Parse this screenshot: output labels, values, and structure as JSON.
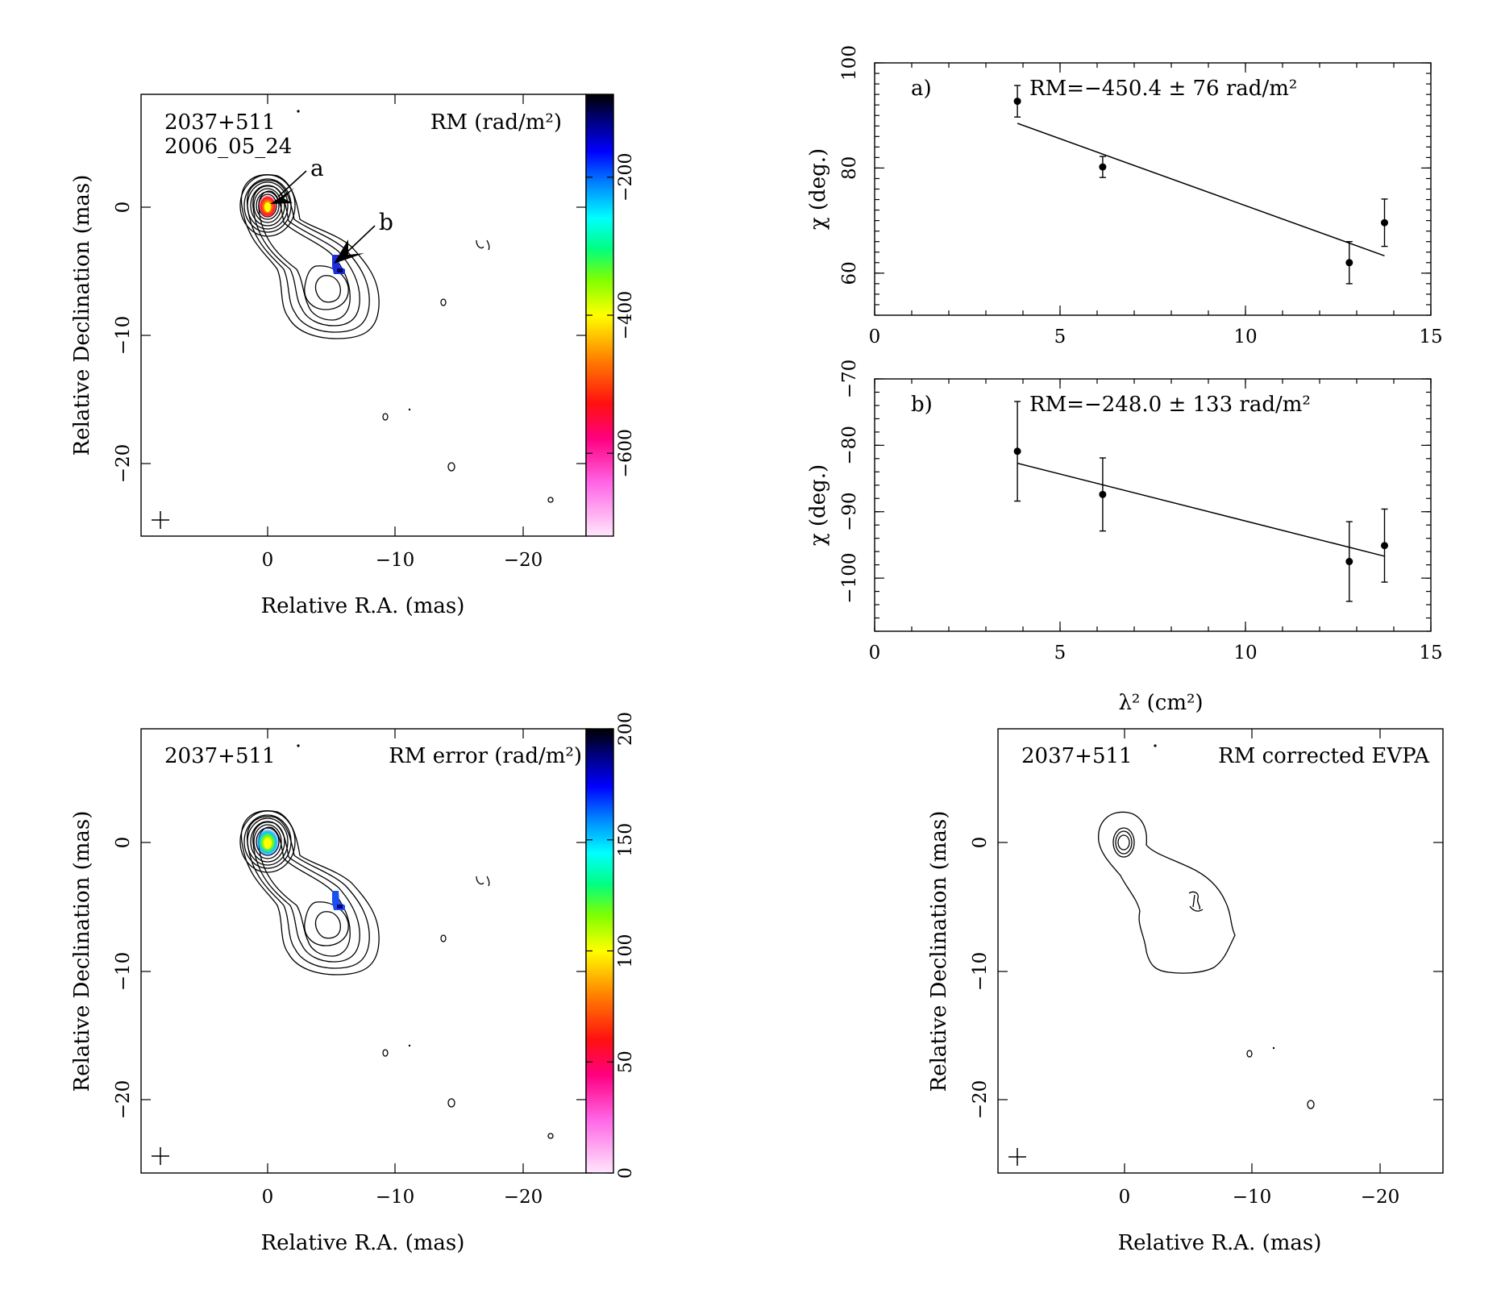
{
  "panels": {
    "rm_map": {
      "source": "2037+511",
      "date": "2006_05_24",
      "quantity": "RM (rad/m²)",
      "marker_a": "a",
      "marker_b": "b",
      "xlabel": "Relative R.A. (mas)",
      "ylabel": "Relative Declination (mas)",
      "xticks": [
        "0",
        "−10",
        "−20"
      ],
      "yticks": [
        "0",
        "−10",
        "−20"
      ],
      "colorbar_ticks": [
        "−200",
        "−400",
        "−600"
      ],
      "colorbar_range": [
        -720,
        -80
      ]
    },
    "rm_error_map": {
      "source": "2037+511",
      "quantity": "RM error (rad/m²)",
      "xlabel": "Relative R.A. (mas)",
      "ylabel": "Relative Declination (mas)",
      "xticks": [
        "0",
        "−10",
        "−20"
      ],
      "yticks": [
        "0",
        "−10",
        "−20"
      ],
      "colorbar_ticks": [
        "0",
        "50",
        "100",
        "150",
        "200"
      ],
      "colorbar_range": [
        0,
        200
      ]
    },
    "evpa_map": {
      "source": "2037+511",
      "quantity": "RM corrected EVPA",
      "xlabel": "Relative R.A. (mas)",
      "ylabel": "Relative Declination (mas)",
      "xticks": [
        "0",
        "−10",
        "−20"
      ],
      "yticks": [
        "0",
        "−10",
        "−20"
      ]
    },
    "fit_shared_xlabel": "λ² (cm²)"
  },
  "chart_data": [
    {
      "type": "scatter",
      "panel_label": "a)",
      "annotation": "RM=−450.4 ± 76 rad/m²",
      "ylabel": "χ (deg.)",
      "xlim": [
        0,
        15
      ],
      "ylim": [
        52,
        100
      ],
      "xticks": [
        "0",
        "5",
        "10",
        "15"
      ],
      "yticks": [
        "60",
        "80",
        "100"
      ],
      "x": [
        3.85,
        6.15,
        12.8,
        13.75
      ],
      "y": [
        92.7,
        80.2,
        62.0,
        69.6
      ],
      "yerr": [
        3.0,
        2.0,
        4.0,
        4.5
      ],
      "fit_line": {
        "x": [
          3.85,
          13.75
        ],
        "y": [
          88.5,
          63.3
        ]
      }
    },
    {
      "type": "scatter",
      "panel_label": "b)",
      "annotation": "RM=−248.0 ± 133 rad/m²",
      "ylabel": "χ (deg.)",
      "xlim": [
        0,
        15
      ],
      "ylim": [
        -108,
        -70
      ],
      "xticks": [
        "0",
        "5",
        "10",
        "15"
      ],
      "yticks": [
        "−70",
        "−80",
        "−90",
        "−100"
      ],
      "x": [
        3.85,
        6.15,
        12.8,
        13.75
      ],
      "y": [
        -80.9,
        -87.4,
        -97.5,
        -95.1
      ],
      "yerr": [
        7.5,
        5.5,
        6.0,
        5.5
      ],
      "fit_line": {
        "x": [
          3.85,
          13.75
        ],
        "y": [
          -82.7,
          -96.7
        ]
      }
    }
  ]
}
